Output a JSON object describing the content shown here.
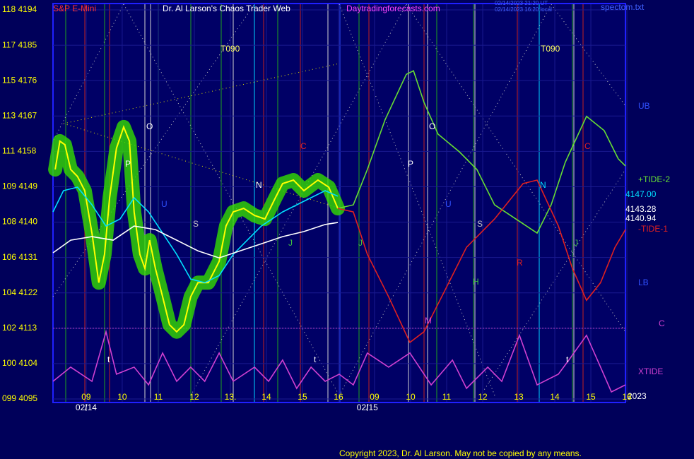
{
  "chart_data": {
    "type": "line",
    "header": {
      "symbol": "S&P E-Mini",
      "title": "Dr. Al Larson's Chaos Trader Web",
      "site": "Daytradingforecasts.com",
      "stamp_utc": "02/14/2023 21:20 UT",
      "stamp_local": "02/14/2023 16:20 local",
      "file": "spectom.txt"
    },
    "xlim": [
      -0.92,
      14.96
    ],
    "ylim": [
      4095,
      4194
    ],
    "yticks": [
      {
        "value": 4194,
        "label": "118 4194"
      },
      {
        "value": 4185,
        "label": "117 4185"
      },
      {
        "value": 4176,
        "label": "115 4176"
      },
      {
        "value": 4167,
        "label": "113 4167"
      },
      {
        "value": 4158,
        "label": "111 4158"
      },
      {
        "value": 4149,
        "label": "109 4149"
      },
      {
        "value": 4140,
        "label": "108 4140"
      },
      {
        "value": 4131,
        "label": "106 4131"
      },
      {
        "value": 4122,
        "label": "104 4122"
      },
      {
        "value": 4113,
        "label": "102 4113"
      },
      {
        "value": 4104,
        "label": "100 4104"
      },
      {
        "value": 4095,
        "label": "099 4095"
      }
    ],
    "xticks": [
      {
        "value": 0,
        "label": "09"
      },
      {
        "value": 1,
        "label": "10"
      },
      {
        "value": 2,
        "label": "11"
      },
      {
        "value": 3,
        "label": "12"
      },
      {
        "value": 4,
        "label": "13."
      },
      {
        "value": 5,
        "label": "14"
      },
      {
        "value": 6,
        "label": "15"
      },
      {
        "value": 7,
        "label": "16"
      },
      {
        "value": 8,
        "label": "09"
      },
      {
        "value": 9,
        "label": "10"
      },
      {
        "value": 10,
        "label": "11"
      },
      {
        "value": 11,
        "label": "12"
      },
      {
        "value": 12,
        "label": "13"
      },
      {
        "value": 13,
        "label": "14"
      },
      {
        "value": 14,
        "label": "15"
      },
      {
        "value": 15,
        "label": "16"
      }
    ],
    "date_labels": [
      {
        "value": 0,
        "label": "02/14"
      },
      {
        "value": 7.8,
        "label": "02/15"
      }
    ],
    "year_label": "2023",
    "grid": true,
    "reference_line": {
      "value": 4113,
      "color": "#c040c0"
    },
    "series": [
      {
        "color": "#ffff00",
        "glow": "#33dd00",
        "x": [
          -0.86,
          -0.73,
          -0.59,
          -0.43,
          -0.24,
          -0.04,
          0.16,
          0.35,
          0.51,
          0.65,
          0.84,
          1.04,
          1.2,
          1.33,
          1.49,
          1.63,
          1.76,
          1.92,
          2.12,
          2.31,
          2.51,
          2.71,
          2.9,
          3.1,
          3.39,
          3.69,
          3.88,
          4.08,
          4.37,
          4.67,
          4.96,
          5.25,
          5.45,
          5.75,
          6.04,
          6.43,
          6.73,
          6.98
        ],
        "values": [
          4153.4,
          4160.6,
          4159.7,
          4153.4,
          4151.6,
          4148.0,
          4137.2,
          4124.6,
          4131.8,
          4146.2,
          4158.8,
          4164.2,
          4160.6,
          4142.6,
          4131.8,
          4128.2,
          4135.4,
          4128.2,
          4121.0,
          4113.9,
          4112.1,
          4113.9,
          4121.0,
          4124.6,
          4124.6,
          4130.0,
          4139.0,
          4142.6,
          4143.5,
          4141.7,
          4140.8,
          4146.2,
          4149.8,
          4150.7,
          4148.0,
          4150.7,
          4148.9,
          4143.5
        ]
      },
      {
        "color": "#00e0ff",
        "x": [
          -0.92,
          -0.63,
          -0.24,
          0.16,
          0.55,
          0.94,
          1.33,
          1.73,
          2.12,
          2.51,
          2.9,
          3.29,
          3.69,
          4.08,
          4.47,
          4.86,
          5.45,
          6.04,
          6.63,
          6.98
        ],
        "values": [
          4142.6,
          4148.0,
          4148.9,
          4144.4,
          4139.0,
          4140.8,
          4146.2,
          4142.6,
          4137.2,
          4131.8,
          4125.5,
          4124.6,
          4126.4,
          4131.8,
          4135.4,
          4139.0,
          4142.6,
          4145.3,
          4148.0,
          4146.6
        ]
      },
      {
        "color": "#ffffff",
        "x": [
          -0.92,
          -0.43,
          0.16,
          0.75,
          1.33,
          1.92,
          2.51,
          3.1,
          3.69,
          4.27,
          4.86,
          5.45,
          6.04,
          6.63,
          6.98
        ],
        "values": [
          4132.2,
          4135.4,
          4136.3,
          4135.4,
          4139.0,
          4138.1,
          4135.4,
          4132.7,
          4130.9,
          4132.7,
          4134.5,
          4136.3,
          4137.6,
          4139.4,
          4139.9
        ]
      },
      {
        "name": "+TIDE-2",
        "color": "#66dd33",
        "x": [
          6.98,
          7.41,
          7.8,
          8.29,
          8.88,
          9.08,
          9.37,
          9.76,
          10.35,
          10.84,
          11.33,
          11.92,
          12.51,
          12.9,
          13.29,
          13.88,
          14.37,
          14.76,
          14.96
        ],
        "values": [
          4143.5,
          4144.4,
          4153.4,
          4166.0,
          4177.6,
          4178.5,
          4170.5,
          4162.4,
          4157.9,
          4153.4,
          4144.4,
          4140.8,
          4137.2,
          4144.4,
          4155.2,
          4166.9,
          4163.3,
          4156.1,
          4154.3
        ]
      },
      {
        "name": "-TIDE-1",
        "color": "#e02020",
        "x": [
          6.98,
          7.41,
          7.8,
          8.39,
          8.98,
          9.37,
          9.96,
          10.55,
          11.33,
          12.12,
          12.51,
          13.1,
          13.49,
          13.88,
          14.27,
          14.67,
          14.96
        ],
        "values": [
          4143.5,
          4142.6,
          4131.8,
          4121.0,
          4109.4,
          4112.1,
          4122.8,
          4133.6,
          4140.8,
          4149.8,
          4150.7,
          4139.0,
          4128.2,
          4120.1,
          4124.6,
          4133.6,
          4138.1
        ]
      },
      {
        "name": "XTIDE",
        "color": "#d040d0",
        "x": [
          -0.92,
          -0.43,
          0.16,
          0.55,
          0.84,
          1.33,
          1.73,
          2.12,
          2.51,
          2.9,
          3.29,
          3.69,
          4.08,
          4.67,
          5.06,
          5.45,
          5.84,
          6.24,
          6.63,
          7.02,
          7.41,
          7.8,
          8.39,
          8.98,
          9.57,
          10.16,
          10.55,
          11.14,
          11.53,
          12.02,
          12.51,
          13.1,
          13.39,
          13.88,
          14.27,
          14.57,
          14.96
        ],
        "values": [
          4099.5,
          4103.1,
          4099.5,
          4112.1,
          4101.3,
          4103.1,
          4098.6,
          4106.7,
          4099.5,
          4103.1,
          4099.5,
          4106.7,
          4099.5,
          4103.1,
          4099.5,
          4104.9,
          4097.7,
          4103.1,
          4099.5,
          4101.3,
          4098.6,
          4106.7,
          4103.1,
          4106.7,
          4098.6,
          4104.9,
          4097.7,
          4103.1,
          4099.5,
          4111.2,
          4098.6,
          4101.3,
          4104.9,
          4111.2,
          4103.1,
          4096.8,
          4098.6
        ]
      }
    ],
    "right_labels": [
      {
        "text": "UB",
        "color": "#3050ff"
      },
      {
        "text": "4147.00",
        "color": "#00e0ff"
      },
      {
        "text": "4143.28",
        "color": "#ffffff"
      },
      {
        "text": "4140.94",
        "color": "#ffffff"
      },
      {
        "text": "LB",
        "color": "#3050ff"
      },
      {
        "text": "C",
        "color": "#d040d0"
      }
    ],
    "annotations": [
      {
        "text": "T090",
        "color": "#ffff60"
      },
      {
        "text": "T090",
        "color": "#ffff60"
      },
      {
        "text": "O",
        "color": "#ffffff"
      },
      {
        "text": "O",
        "color": "#ffffff"
      },
      {
        "text": "P",
        "color": "#ffffff"
      },
      {
        "text": "P",
        "color": "#ffffff"
      },
      {
        "text": "C",
        "color": "#e02020"
      },
      {
        "text": "C",
        "color": "#e02020"
      },
      {
        "text": "N",
        "color": "#ffffff"
      },
      {
        "text": "N",
        "color": "#00e0ff"
      },
      {
        "text": "S",
        "color": "#c0c0c0"
      },
      {
        "text": "S",
        "color": "#c0c0c0"
      },
      {
        "text": "U",
        "color": "#3050ff"
      },
      {
        "text": "U",
        "color": "#3050ff"
      },
      {
        "text": "R",
        "color": "#e02020"
      },
      {
        "text": "H",
        "color": "#40c040"
      },
      {
        "text": "M",
        "color": "#d040d0"
      },
      {
        "text": "J",
        "color": "#40c040"
      },
      {
        "text": "J",
        "color": "#40c040"
      },
      {
        "text": "J",
        "color": "#40c040"
      },
      {
        "text": "t",
        "color": "#ffffff"
      },
      {
        "text": "t",
        "color": "#ffffff"
      },
      {
        "text": "t",
        "color": "#ffffff"
      }
    ],
    "copyright": "Copyright 2023, Dr. Al Larson. May not be copied by any means."
  }
}
